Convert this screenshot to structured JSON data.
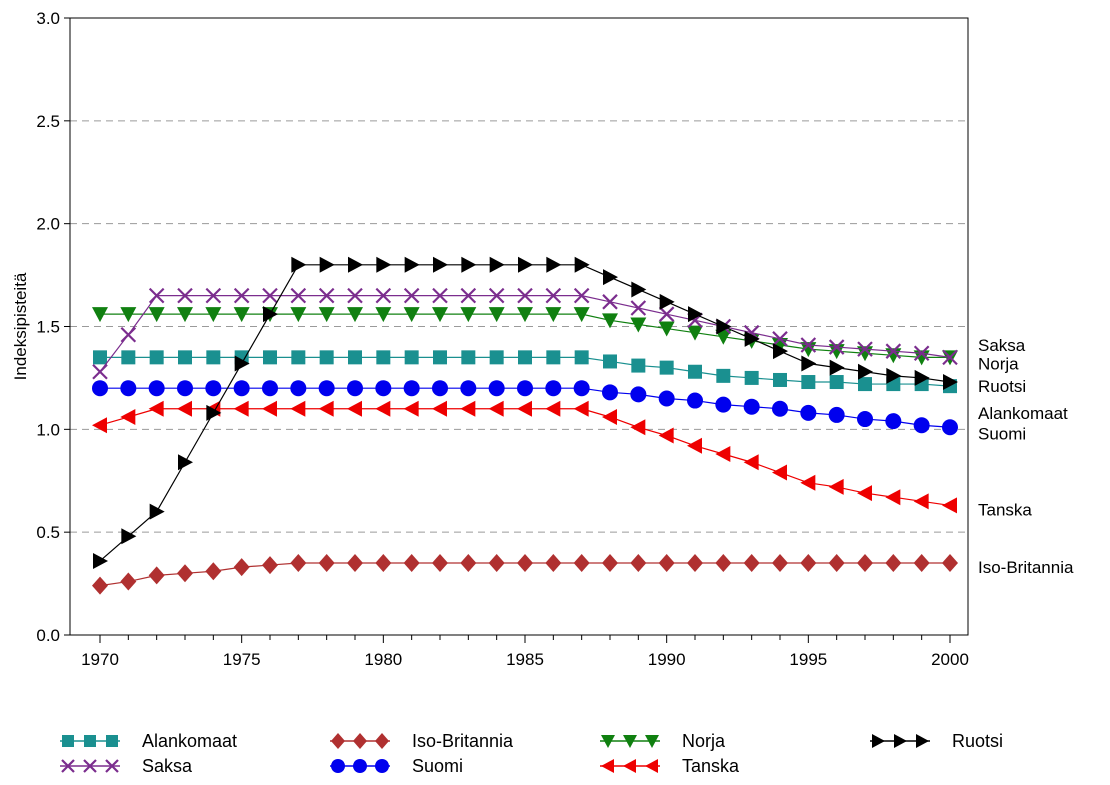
{
  "chart_data": {
    "type": "line",
    "ylabel": "Indeksipisteitä",
    "xlabel": "",
    "title": "",
    "xlim": [
      1970,
      2000
    ],
    "ylim": [
      0.0,
      3.0
    ],
    "x_ticks": [
      1970,
      1975,
      1980,
      1985,
      1990,
      1995,
      2000
    ],
    "y_ticks": [
      "0.0",
      "0.5",
      "1.0",
      "1.5",
      "2.0",
      "2.5",
      "3.0"
    ],
    "grid": "horizontal dashed",
    "legend_position": "bottom",
    "x": [
      1970,
      1971,
      1972,
      1973,
      1974,
      1975,
      1976,
      1977,
      1978,
      1979,
      1980,
      1981,
      1982,
      1983,
      1984,
      1985,
      1986,
      1987,
      1988,
      1989,
      1990,
      1991,
      1992,
      1993,
      1994,
      1995,
      1996,
      1997,
      1998,
      1999,
      2000
    ],
    "series": [
      {
        "name": "Alankomaat",
        "color": "#1a9090",
        "marker": "square",
        "values": [
          1.35,
          1.35,
          1.35,
          1.35,
          1.35,
          1.35,
          1.35,
          1.35,
          1.35,
          1.35,
          1.35,
          1.35,
          1.35,
          1.35,
          1.35,
          1.35,
          1.35,
          1.35,
          1.33,
          1.31,
          1.3,
          1.28,
          1.26,
          1.25,
          1.24,
          1.23,
          1.23,
          1.22,
          1.22,
          1.22,
          1.21
        ]
      },
      {
        "name": "Iso-Britannia",
        "color": "#b03030",
        "marker": "diamond",
        "values": [
          0.24,
          0.26,
          0.29,
          0.3,
          0.31,
          0.33,
          0.34,
          0.35,
          0.35,
          0.35,
          0.35,
          0.35,
          0.35,
          0.35,
          0.35,
          0.35,
          0.35,
          0.35,
          0.35,
          0.35,
          0.35,
          0.35,
          0.35,
          0.35,
          0.35,
          0.35,
          0.35,
          0.35,
          0.35,
          0.35,
          0.35
        ]
      },
      {
        "name": "Norja",
        "color": "#108010",
        "marker": "triangle-down",
        "values": [
          1.56,
          1.56,
          1.56,
          1.56,
          1.56,
          1.56,
          1.56,
          1.56,
          1.56,
          1.56,
          1.56,
          1.56,
          1.56,
          1.56,
          1.56,
          1.56,
          1.56,
          1.56,
          1.53,
          1.51,
          1.49,
          1.47,
          1.45,
          1.43,
          1.41,
          1.39,
          1.38,
          1.37,
          1.36,
          1.35,
          1.35
        ]
      },
      {
        "name": "Ruotsi",
        "color": "#000000",
        "marker": "triangle-right",
        "values": [
          0.36,
          0.48,
          0.6,
          0.84,
          1.08,
          1.32,
          1.56,
          1.8,
          1.8,
          1.8,
          1.8,
          1.8,
          1.8,
          1.8,
          1.8,
          1.8,
          1.8,
          1.8,
          1.74,
          1.68,
          1.62,
          1.56,
          1.5,
          1.44,
          1.38,
          1.32,
          1.3,
          1.28,
          1.26,
          1.25,
          1.23
        ]
      },
      {
        "name": "Saksa",
        "color": "#7b2d8e",
        "marker": "x",
        "values": [
          1.28,
          1.46,
          1.65,
          1.65,
          1.65,
          1.65,
          1.65,
          1.65,
          1.65,
          1.65,
          1.65,
          1.65,
          1.65,
          1.65,
          1.65,
          1.65,
          1.65,
          1.65,
          1.62,
          1.59,
          1.56,
          1.53,
          1.5,
          1.47,
          1.44,
          1.41,
          1.4,
          1.39,
          1.38,
          1.37,
          1.35
        ]
      },
      {
        "name": "Suomi",
        "color": "#0000ee",
        "marker": "circle",
        "values": [
          1.2,
          1.2,
          1.2,
          1.2,
          1.2,
          1.2,
          1.2,
          1.2,
          1.2,
          1.2,
          1.2,
          1.2,
          1.2,
          1.2,
          1.2,
          1.2,
          1.2,
          1.2,
          1.18,
          1.17,
          1.15,
          1.14,
          1.12,
          1.11,
          1.1,
          1.08,
          1.07,
          1.05,
          1.04,
          1.02,
          1.01
        ]
      },
      {
        "name": "Tanska",
        "color": "#ee0000",
        "marker": "triangle-left",
        "values": [
          1.02,
          1.06,
          1.1,
          1.1,
          1.1,
          1.1,
          1.1,
          1.1,
          1.1,
          1.1,
          1.1,
          1.1,
          1.1,
          1.1,
          1.1,
          1.1,
          1.1,
          1.1,
          1.06,
          1.01,
          0.97,
          0.92,
          0.88,
          0.84,
          0.79,
          0.74,
          0.72,
          0.69,
          0.67,
          0.65,
          0.63
        ]
      }
    ],
    "end_labels": [
      {
        "text": "Saksa",
        "y": 1.41
      },
      {
        "text": "Norja",
        "y": 1.32
      },
      {
        "text": "Ruotsi",
        "y": 1.21
      },
      {
        "text": "Alankomaat",
        "y": 1.08
      },
      {
        "text": "Suomi",
        "y": 0.98
      },
      {
        "text": "Tanska",
        "y": 0.61
      },
      {
        "text": "Iso-Britannia",
        "y": 0.33
      }
    ],
    "legend_rows": [
      [
        "Alankomaat",
        "Iso-Britannia",
        "Norja",
        "Ruotsi"
      ],
      [
        "Saksa",
        "Suomi",
        "Tanska"
      ]
    ]
  }
}
